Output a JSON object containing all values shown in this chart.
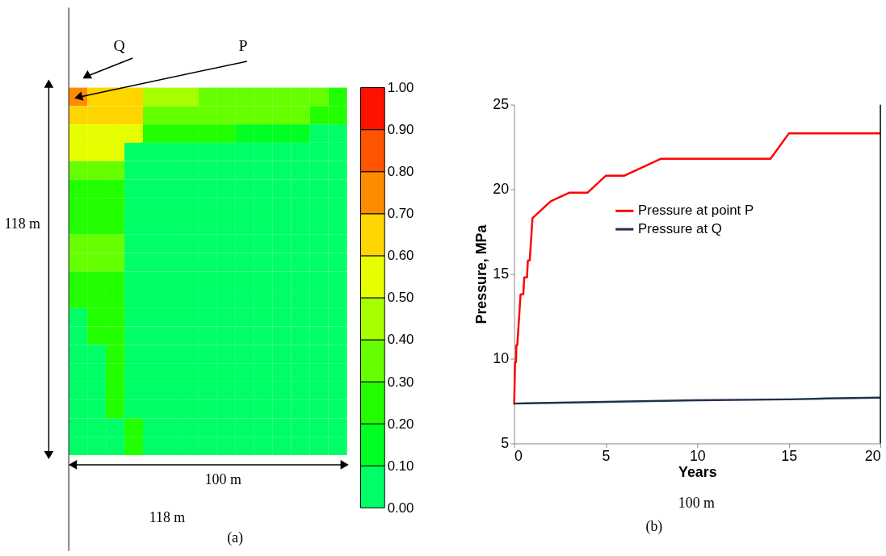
{
  "chart_data": [
    {
      "type": "heatmap",
      "categories": [
        null,
        null,
        null,
        null,
        null,
        null,
        null,
        null,
        null,
        null,
        null,
        null,
        null,
        null,
        null
      ],
      "y_categories": [
        null,
        null,
        null,
        null,
        null,
        null,
        null,
        null,
        null,
        null,
        null,
        null,
        null,
        null,
        null,
        null,
        null,
        null,
        null,
        null
      ],
      "cells": [
        [
          0.75,
          0.65,
          0.65,
          0.65,
          0.45,
          0.45,
          0.45,
          0.35,
          0.35,
          0.35,
          0.35,
          0.35,
          0.35,
          0.35,
          0.25
        ],
        [
          0.65,
          0.65,
          0.65,
          0.65,
          0.35,
          0.35,
          0.35,
          0.35,
          0.35,
          0.35,
          0.35,
          0.35,
          0.35,
          0.25,
          0.25
        ],
        [
          0.55,
          0.55,
          0.55,
          0.55,
          0.25,
          0.25,
          0.25,
          0.25,
          0.25,
          0.15,
          0.15,
          0.15,
          0.15,
          0.05,
          0.05
        ],
        [
          0.55,
          0.55,
          0.55,
          0.05,
          0.05,
          0.05,
          0.05,
          0.05,
          0.05,
          0.05,
          0.05,
          0.05,
          0.05,
          0.05,
          0.05
        ],
        [
          0.35,
          0.35,
          0.35,
          0.05,
          0.05,
          0.05,
          0.05,
          0.05,
          0.05,
          0.05,
          0.05,
          0.05,
          0.05,
          0.05,
          0.05
        ],
        [
          0.25,
          0.25,
          0.25,
          0.05,
          0.05,
          0.05,
          0.05,
          0.05,
          0.05,
          0.05,
          0.05,
          0.05,
          0.05,
          0.05,
          0.05
        ],
        [
          0.25,
          0.25,
          0.25,
          0.05,
          0.05,
          0.05,
          0.05,
          0.05,
          0.05,
          0.05,
          0.05,
          0.05,
          0.05,
          0.05,
          0.05
        ],
        [
          0.25,
          0.25,
          0.25,
          0.05,
          0.05,
          0.05,
          0.05,
          0.05,
          0.05,
          0.05,
          0.05,
          0.05,
          0.05,
          0.05,
          0.05
        ],
        [
          0.35,
          0.35,
          0.35,
          0.05,
          0.05,
          0.05,
          0.05,
          0.05,
          0.05,
          0.05,
          0.05,
          0.05,
          0.05,
          0.05,
          0.05
        ],
        [
          0.35,
          0.35,
          0.35,
          0.05,
          0.05,
          0.05,
          0.05,
          0.05,
          0.05,
          0.05,
          0.05,
          0.05,
          0.05,
          0.05,
          0.05
        ],
        [
          0.25,
          0.25,
          0.25,
          0.05,
          0.05,
          0.05,
          0.05,
          0.05,
          0.05,
          0.05,
          0.05,
          0.05,
          0.05,
          0.05,
          0.05
        ],
        [
          0.25,
          0.25,
          0.25,
          0.05,
          0.05,
          0.05,
          0.05,
          0.05,
          0.05,
          0.05,
          0.05,
          0.05,
          0.05,
          0.05,
          0.05
        ],
        [
          0.05,
          0.25,
          0.25,
          0.05,
          0.05,
          0.05,
          0.05,
          0.05,
          0.05,
          0.05,
          0.05,
          0.05,
          0.05,
          0.05,
          0.05
        ],
        [
          0.05,
          0.25,
          0.25,
          0.05,
          0.05,
          0.05,
          0.05,
          0.05,
          0.05,
          0.05,
          0.05,
          0.05,
          0.05,
          0.05,
          0.05
        ],
        [
          0.05,
          0.05,
          0.25,
          0.05,
          0.05,
          0.05,
          0.05,
          0.05,
          0.05,
          0.05,
          0.05,
          0.05,
          0.05,
          0.05,
          0.05
        ],
        [
          0.05,
          0.05,
          0.25,
          0.05,
          0.05,
          0.05,
          0.05,
          0.05,
          0.05,
          0.05,
          0.05,
          0.05,
          0.05,
          0.05,
          0.05
        ],
        [
          0.05,
          0.05,
          0.25,
          0.05,
          0.05,
          0.05,
          0.05,
          0.05,
          0.05,
          0.05,
          0.05,
          0.05,
          0.05,
          0.05,
          0.05
        ],
        [
          0.05,
          0.05,
          0.25,
          0.05,
          0.05,
          0.05,
          0.05,
          0.05,
          0.05,
          0.05,
          0.05,
          0.05,
          0.05,
          0.05,
          0.05
        ],
        [
          0.05,
          0.05,
          0.05,
          0.25,
          0.05,
          0.05,
          0.05,
          0.05,
          0.05,
          0.05,
          0.05,
          0.05,
          0.05,
          0.05,
          0.05
        ],
        [
          0.05,
          0.05,
          0.05,
          0.25,
          0.05,
          0.05,
          0.05,
          0.05,
          0.05,
          0.05,
          0.05,
          0.05,
          0.05,
          0.05,
          0.05
        ]
      ],
      "clim": [
        0,
        1
      ],
      "cticks": [
        {
          "value": 0,
          "label": "0.00"
        },
        {
          "value": 0.1,
          "label": "0.10"
        },
        {
          "value": 0.2,
          "label": "0.20"
        },
        {
          "value": 0.3,
          "label": "0.30"
        },
        {
          "value": 0.4,
          "label": "0.40"
        },
        {
          "value": 0.5,
          "label": "0.50"
        },
        {
          "value": 0.6,
          "label": "0.60"
        },
        {
          "value": 0.7,
          "label": "0.70"
        },
        {
          "value": 0.8,
          "label": "0.80"
        },
        {
          "value": 0.9,
          "label": "0.90"
        },
        {
          "value": 1,
          "label": "1.00"
        }
      ],
      "colors": [
        "#00ff66",
        "#00ff22",
        "#22ff00",
        "#66ff00",
        "#a8ff00",
        "#e6ff00",
        "#ffd500",
        "#ff8c00",
        "#ff5500",
        "#ff1100"
      ],
      "annotations": [
        "Q",
        "P",
        "118 m",
        "100 m",
        "118 m",
        "(a)"
      ]
    },
    {
      "type": "line",
      "xlabel": "Years",
      "ylabel": "Pressure, MPa",
      "xlim": [
        0,
        20
      ],
      "xticks": [
        0,
        5,
        10,
        15,
        20
      ],
      "ylim": [
        5,
        25
      ],
      "yticks": [
        5,
        10,
        15,
        20,
        25
      ],
      "grid": false,
      "legend": "right",
      "marker": "none",
      "line_style": "solid",
      "series": [
        {
          "name": "Pressure at point P",
          "color": "#ff0000",
          "x": [
            0,
            0.05,
            0.1,
            0.12,
            0.17,
            0.35,
            0.5,
            0.55,
            0.7,
            0.75,
            0.85,
            1,
            2,
            3,
            4,
            5,
            6,
            8,
            14,
            15,
            20
          ],
          "values": [
            7.3,
            9.8,
            9.8,
            10.8,
            10.8,
            13.8,
            13.8,
            14.8,
            14.8,
            15.8,
            15.8,
            18.3,
            19.3,
            19.8,
            19.8,
            20.8,
            20.8,
            21.8,
            21.8,
            23.3,
            23.3
          ]
        },
        {
          "name": "Pressure at Q",
          "color": "#1f3050",
          "x": [
            0,
            0.7,
            5,
            10,
            15,
            17,
            20
          ],
          "values": [
            7.35,
            7.37,
            7.45,
            7.55,
            7.6,
            7.65,
            7.7
          ]
        }
      ],
      "annotations": [
        "100 m",
        "(b)"
      ]
    }
  ]
}
